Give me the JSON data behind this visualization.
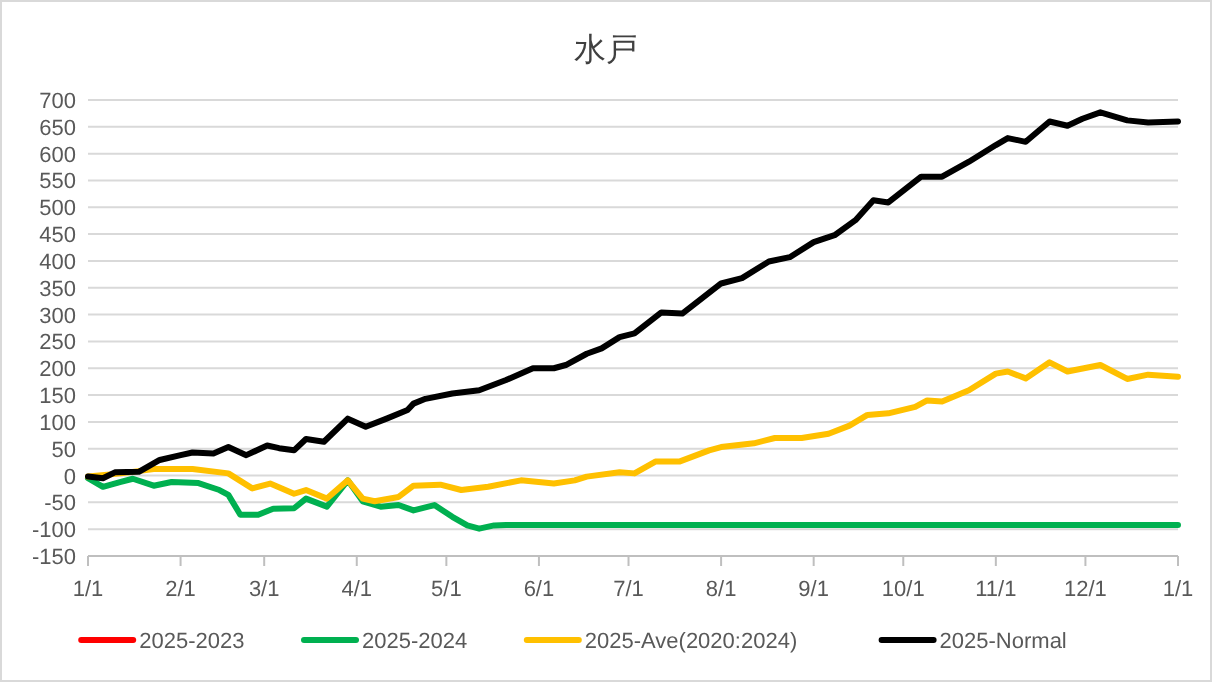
{
  "chart_data": {
    "type": "line",
    "title": "水戸",
    "xlim": [
      "2025-01-01",
      "2026-01-01"
    ],
    "xticks": [
      {
        "value": "2025-01-01",
        "label": "1/1"
      },
      {
        "value": "2025-02-01",
        "label": "2/1"
      },
      {
        "value": "2025-03-01",
        "label": "3/1"
      },
      {
        "value": "2025-04-01",
        "label": "4/1"
      },
      {
        "value": "2025-05-01",
        "label": "5/1"
      },
      {
        "value": "2025-06-01",
        "label": "6/1"
      },
      {
        "value": "2025-07-01",
        "label": "7/1"
      },
      {
        "value": "2025-08-01",
        "label": "8/1"
      },
      {
        "value": "2025-09-01",
        "label": "9/1"
      },
      {
        "value": "2025-10-01",
        "label": "10/1"
      },
      {
        "value": "2025-11-01",
        "label": "11/1"
      },
      {
        "value": "2025-12-01",
        "label": "12/1"
      },
      {
        "value": "2026-01-01",
        "label": "1/1"
      }
    ],
    "ylim": [
      -150,
      700
    ],
    "yticks": [
      -150,
      -100,
      -50,
      0,
      50,
      100,
      150,
      200,
      250,
      300,
      350,
      400,
      450,
      500,
      550,
      600,
      650,
      700
    ],
    "grid": "y",
    "legend": "bottom",
    "line_style": "solid",
    "marker": "none",
    "series": [
      {
        "name": "2025-2023",
        "color": "#ff0000"
      },
      {
        "name": "2025-2024",
        "color": "#00b050",
        "x": [
          "2025-01-01",
          "2025-01-06",
          "2025-01-12",
          "2025-01-16",
          "2025-01-23",
          "2025-01-29",
          "2025-02-07",
          "2025-02-14",
          "2025-02-17",
          "2025-02-21",
          "2025-02-27",
          "2025-03-04",
          "2025-03-11",
          "2025-03-15",
          "2025-03-22",
          "2025-03-29",
          "2025-04-03",
          "2025-04-09",
          "2025-04-15",
          "2025-04-20",
          "2025-04-27",
          "2025-05-03",
          "2025-05-08",
          "2025-05-12",
          "2025-05-17",
          "2025-05-21",
          "2025-06-15",
          "2026-01-01"
        ],
        "values": [
          -5,
          -21,
          -12,
          -6,
          -19,
          -12,
          -14,
          -27,
          -36,
          -73,
          -73,
          -62,
          -61,
          -43,
          -58,
          -9,
          -48,
          -58,
          -55,
          -65,
          -55,
          -77,
          -93,
          -99,
          -93,
          -92,
          -92,
          -92
        ]
      },
      {
        "name": "2025-Ave(2020:2024)",
        "color": "#ffc000",
        "x": [
          "2025-01-01",
          "2025-01-12",
          "2025-01-23",
          "2025-02-05",
          "2025-02-17",
          "2025-02-25",
          "2025-03-03",
          "2025-03-11",
          "2025-03-15",
          "2025-03-22",
          "2025-03-29",
          "2025-04-03",
          "2025-04-07",
          "2025-04-15",
          "2025-04-20",
          "2025-04-29",
          "2025-05-06",
          "2025-05-15",
          "2025-05-26",
          "2025-06-06",
          "2025-06-13",
          "2025-06-17",
          "2025-06-28",
          "2025-07-03",
          "2025-07-10",
          "2025-07-18",
          "2025-07-28",
          "2025-08-01",
          "2025-08-12",
          "2025-08-19",
          "2025-08-28",
          "2025-09-06",
          "2025-09-13",
          "2025-09-19",
          "2025-09-26",
          "2025-10-05",
          "2025-10-09",
          "2025-10-14",
          "2025-10-23",
          "2025-11-01",
          "2025-11-05",
          "2025-11-11",
          "2025-11-19",
          "2025-11-25",
          "2025-12-06",
          "2025-12-15",
          "2025-12-22",
          "2026-01-01"
        ],
        "values": [
          -2,
          4,
          12,
          12,
          4,
          -24,
          -15,
          -34,
          -27,
          -43,
          -9,
          -43,
          -48,
          -40,
          -19,
          -17,
          -27,
          -21,
          -9,
          -15,
          -9,
          -2,
          6,
          4,
          26,
          26,
          47,
          53,
          60,
          70,
          70,
          78,
          93,
          113,
          116,
          128,
          140,
          138,
          159,
          190,
          194,
          181,
          211,
          194,
          206,
          180,
          188,
          184
        ]
      },
      {
        "name": "2025-Normal",
        "color": "#000000",
        "x": [
          "2025-01-01",
          "2025-01-06",
          "2025-01-10",
          "2025-01-18",
          "2025-01-25",
          "2025-02-01",
          "2025-02-05",
          "2025-02-12",
          "2025-02-17",
          "2025-02-23",
          "2025-03-02",
          "2025-03-06",
          "2025-03-11",
          "2025-03-15",
          "2025-03-21",
          "2025-03-29",
          "2025-04-04",
          "2025-04-11",
          "2025-04-18",
          "2025-04-20",
          "2025-04-24",
          "2025-05-03",
          "2025-05-12",
          "2025-05-21",
          "2025-05-30",
          "2025-06-06",
          "2025-06-10",
          "2025-06-17",
          "2025-06-22",
          "2025-06-28",
          "2025-07-03",
          "2025-07-12",
          "2025-07-19",
          "2025-08-01",
          "2025-08-08",
          "2025-08-17",
          "2025-08-24",
          "2025-09-01",
          "2025-09-08",
          "2025-09-15",
          "2025-09-21",
          "2025-09-26",
          "2025-10-07",
          "2025-10-14",
          "2025-10-23",
          "2025-11-01",
          "2025-11-05",
          "2025-11-11",
          "2025-11-19",
          "2025-11-25",
          "2025-11-30",
          "2025-12-06",
          "2025-12-15",
          "2025-12-22",
          "2026-01-01"
        ],
        "values": [
          -2,
          -5,
          6,
          7,
          29,
          38,
          43,
          41,
          53,
          38,
          56,
          51,
          47,
          68,
          63,
          106,
          91,
          106,
          122,
          134,
          143,
          153,
          159,
          178,
          200,
          200,
          206,
          227,
          237,
          258,
          265,
          304,
          302,
          358,
          368,
          399,
          407,
          435,
          448,
          476,
          513,
          509,
          557,
          557,
          585,
          616,
          629,
          622,
          660,
          652,
          665,
          677,
          662,
          658,
          660
        ]
      }
    ]
  }
}
